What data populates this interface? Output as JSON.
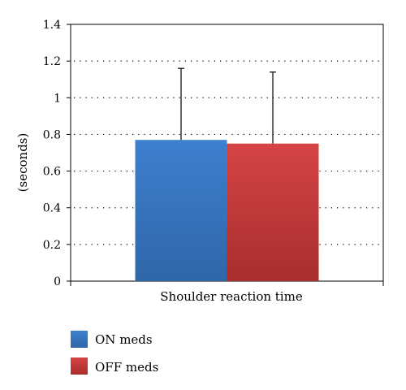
{
  "chart_data": {
    "type": "bar",
    "title": "",
    "xlabel": "",
    "ylabel": "(seconds)",
    "categories": [
      "Shoulder reaction time"
    ],
    "series": [
      {
        "name": "ON meds",
        "values": [
          0.77
        ],
        "error_upper": [
          1.16
        ],
        "color": "#3a78c3"
      },
      {
        "name": "OFF meds",
        "values": [
          0.75
        ],
        "error_upper": [
          1.14
        ],
        "color": "#c93a3a"
      }
    ],
    "ylim": [
      0,
      1.4
    ],
    "yticks": [
      "0",
      "0.2",
      "0.4",
      "0.6",
      "0.8",
      "1",
      "1.2",
      "1.4"
    ],
    "grid": true,
    "legend": "bottom-left"
  }
}
